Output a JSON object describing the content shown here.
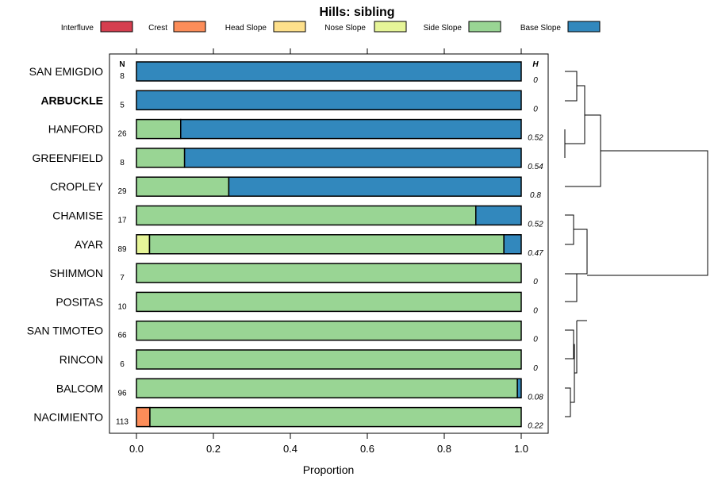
{
  "chart_data": {
    "type": "bar",
    "orientation": "horizontal",
    "stacked": true,
    "title": "Hills: sibling",
    "xlabel": "Proportion",
    "xlim": [
      0,
      1
    ],
    "x_ticks": [
      "0.0",
      "0.2",
      "0.4",
      "0.6",
      "0.8",
      "1.0"
    ],
    "n_header": "N",
    "h_header": "H",
    "legend": [
      {
        "name": "Interfluve",
        "color": "#D53E4F"
      },
      {
        "name": "Crest",
        "color": "#FC8D59"
      },
      {
        "name": "Head Slope",
        "color": "#FEE08B"
      },
      {
        "name": "Nose Slope",
        "color": "#E6F598"
      },
      {
        "name": "Side Slope",
        "color": "#99D594"
      },
      {
        "name": "Base Slope",
        "color": "#3288BD"
      }
    ],
    "rows": [
      {
        "label": "SAN EMIGDIO",
        "bold": false,
        "n": "8",
        "h": "0",
        "values": [
          0,
          0,
          0,
          0,
          0,
          1.0
        ]
      },
      {
        "label": "ARBUCKLE",
        "bold": true,
        "n": "5",
        "h": "0",
        "values": [
          0,
          0,
          0,
          0,
          0,
          1.0
        ]
      },
      {
        "label": "HANFORD",
        "bold": false,
        "n": "26",
        "h": "0.52",
        "values": [
          0,
          0,
          0,
          0,
          0.115,
          0.885
        ]
      },
      {
        "label": "GREENFIELD",
        "bold": false,
        "n": "8",
        "h": "0.54",
        "values": [
          0,
          0,
          0,
          0,
          0.125,
          0.875
        ]
      },
      {
        "label": "CROPLEY",
        "bold": false,
        "n": "29",
        "h": "0.8",
        "values": [
          0,
          0,
          0,
          0,
          0.24,
          0.76
        ]
      },
      {
        "label": "CHAMISE",
        "bold": false,
        "n": "17",
        "h": "0.52",
        "values": [
          0,
          0,
          0,
          0,
          0.882,
          0.118
        ]
      },
      {
        "label": "AYAR",
        "bold": false,
        "n": "89",
        "h": "0.47",
        "values": [
          0,
          0,
          0,
          0.034,
          0.921,
          0.045
        ]
      },
      {
        "label": "SHIMMON",
        "bold": false,
        "n": "7",
        "h": "0",
        "values": [
          0,
          0,
          0,
          0,
          1.0,
          0
        ]
      },
      {
        "label": "POSITAS",
        "bold": false,
        "n": "10",
        "h": "0",
        "values": [
          0,
          0,
          0,
          0,
          1.0,
          0
        ]
      },
      {
        "label": "SAN TIMOTEO",
        "bold": false,
        "n": "66",
        "h": "0",
        "values": [
          0,
          0,
          0,
          0,
          1.0,
          0
        ]
      },
      {
        "label": "RINCON",
        "bold": false,
        "n": "6",
        "h": "0",
        "values": [
          0,
          0,
          0,
          0,
          1.0,
          0
        ]
      },
      {
        "label": "BALCOM",
        "bold": false,
        "n": "96",
        "h": "0.08",
        "values": [
          0,
          0,
          0,
          0,
          0.99,
          0.01
        ]
      },
      {
        "label": "NACIMIENTO",
        "bold": false,
        "n": "113",
        "h": "0.22",
        "values": [
          0,
          0.035,
          0,
          0,
          0.965,
          0
        ]
      }
    ],
    "dendrogram": "hierarchical clustering of profiles shown at right"
  }
}
